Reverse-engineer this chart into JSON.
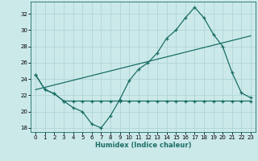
{
  "title": "",
  "xlabel": "Humidex (Indice chaleur)",
  "bg_color": "#cce9ea",
  "grid_color": "#b0d4d4",
  "line_color": "#1a6e65",
  "xlim": [
    -0.5,
    23.5
  ],
  "ylim": [
    17.5,
    33.5
  ],
  "yticks": [
    18,
    20,
    22,
    24,
    26,
    28,
    30,
    32
  ],
  "xticks": [
    0,
    1,
    2,
    3,
    4,
    5,
    6,
    7,
    8,
    9,
    10,
    11,
    12,
    13,
    14,
    15,
    16,
    17,
    18,
    19,
    20,
    21,
    22,
    23
  ],
  "series1_x": [
    0,
    1,
    2,
    3,
    4,
    5,
    6,
    7,
    8,
    9,
    10,
    11,
    12,
    13,
    14,
    15,
    16,
    17,
    18,
    19,
    20,
    21,
    22,
    23
  ],
  "series1_y": [
    24.5,
    22.7,
    22.2,
    21.3,
    20.5,
    20.0,
    18.5,
    18.0,
    19.5,
    21.5,
    23.8,
    25.2,
    26.0,
    27.2,
    29.0,
    30.0,
    31.5,
    32.8,
    31.5,
    29.5,
    28.0,
    24.8,
    22.3,
    21.7
  ],
  "series2_x": [
    0,
    1,
    2,
    3,
    4,
    5,
    6,
    7,
    8,
    9,
    10,
    11,
    12,
    13,
    14,
    15,
    16,
    17,
    18,
    19,
    20,
    21,
    22,
    23
  ],
  "series2_y": [
    24.5,
    22.7,
    22.2,
    21.3,
    21.3,
    21.3,
    21.3,
    21.3,
    21.3,
    21.3,
    21.3,
    21.3,
    21.3,
    21.3,
    21.3,
    21.3,
    21.3,
    21.3,
    21.3,
    21.3,
    21.3,
    21.3,
    21.3,
    21.3
  ],
  "series3_x": [
    0,
    23
  ],
  "series3_y": [
    22.7,
    29.3
  ]
}
